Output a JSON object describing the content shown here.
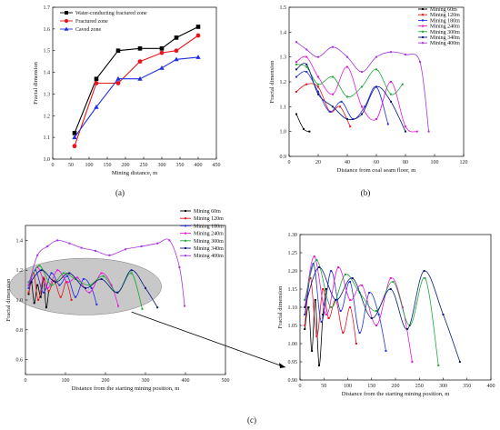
{
  "panel_labels": [
    "(a)",
    "(b)",
    "(c)"
  ],
  "chart_data": [
    {
      "id": "a",
      "type": "line",
      "xlabel": "Mining distance, m",
      "ylabel": "Fractal dimension",
      "xlim": [
        0,
        450
      ],
      "ylim": [
        1.0,
        1.7
      ],
      "xticks": [
        0,
        50,
        100,
        150,
        200,
        250,
        300,
        350,
        400,
        450
      ],
      "yticks": [
        1.0,
        1.1,
        1.2,
        1.3,
        1.4,
        1.5,
        1.6,
        1.7
      ],
      "legend": "top-left",
      "series": [
        {
          "name": "Water-conducting fractured zone",
          "color": "#000000",
          "marker": "square",
          "x": [
            60,
            120,
            180,
            240,
            300,
            340,
            400
          ],
          "y": [
            1.12,
            1.37,
            1.5,
            1.51,
            1.51,
            1.56,
            1.61
          ]
        },
        {
          "name": "Fractured zone",
          "color": "#e8141b",
          "marker": "circle",
          "x": [
            60,
            120,
            180,
            240,
            300,
            340,
            400
          ],
          "y": [
            1.06,
            1.35,
            1.35,
            1.45,
            1.49,
            1.5,
            1.57
          ]
        },
        {
          "name": "Caved zone",
          "color": "#1f2fe0",
          "marker": "triangle",
          "x": [
            60,
            120,
            180,
            240,
            300,
            340,
            400
          ],
          "y": [
            1.1,
            1.24,
            1.37,
            1.37,
            1.42,
            1.46,
            1.47
          ]
        }
      ]
    },
    {
      "id": "b",
      "type": "scatter",
      "xlabel": "Distance from coal seam floor, m",
      "ylabel": "Fractal dimension",
      "xlim": [
        0,
        120
      ],
      "ylim": [
        0.9,
        1.5
      ],
      "xticks": [
        0,
        20,
        40,
        60,
        80,
        100,
        120
      ],
      "yticks": [
        0.9,
        1.0,
        1.1,
        1.2,
        1.3,
        1.4,
        1.5
      ],
      "legend": "top-right",
      "series": [
        {
          "name": "Mining 60m",
          "color": "#000000",
          "x": [
            5,
            10,
            14
          ],
          "y": [
            1.07,
            1.01,
            1.0
          ]
        },
        {
          "name": "Mining 120m",
          "color": "#e8141b",
          "x": [
            5,
            12,
            20,
            28,
            35,
            42
          ],
          "y": [
            1.16,
            1.19,
            1.18,
            1.08,
            1.1,
            1.02
          ]
        },
        {
          "name": "Mining 180m",
          "color": "#1f2fe0",
          "x": [
            5,
            12,
            20,
            28,
            36,
            44,
            52,
            60,
            68
          ],
          "y": [
            1.22,
            1.24,
            1.16,
            1.08,
            1.12,
            1.05,
            1.1,
            1.18,
            1.03
          ]
        },
        {
          "name": "Mining 240m",
          "color": "#e619d6",
          "x": [
            5,
            12,
            20,
            30,
            40,
            50,
            60,
            70,
            80,
            88
          ],
          "y": [
            1.28,
            1.3,
            1.22,
            1.15,
            1.26,
            1.1,
            1.05,
            1.2,
            1.02,
            1.0
          ]
        },
        {
          "name": "Mining 300m",
          "color": "#1ea83a",
          "x": [
            5,
            12,
            20,
            30,
            40,
            50,
            60,
            70,
            78
          ],
          "y": [
            1.27,
            1.26,
            1.19,
            1.22,
            1.14,
            1.18,
            1.25,
            1.15,
            1.19
          ]
        },
        {
          "name": "Mining 340m",
          "color": "#0a1a7a",
          "x": [
            5,
            12,
            20,
            30,
            40,
            50,
            60,
            70,
            80
          ],
          "y": [
            1.25,
            1.27,
            1.15,
            1.1,
            1.05,
            1.07,
            1.18,
            1.12,
            1.0
          ]
        },
        {
          "name": "Mining 400m",
          "color": "#a534e0",
          "x": [
            5,
            12,
            20,
            30,
            40,
            50,
            60,
            70,
            80,
            90,
            96
          ],
          "y": [
            1.36,
            1.33,
            1.3,
            1.34,
            1.3,
            1.24,
            1.3,
            1.32,
            1.31,
            1.28,
            1.0
          ]
        }
      ]
    },
    {
      "id": "c1",
      "type": "line",
      "xlabel": "Distance from the starting mining position, m",
      "ylabel": "Fractal dimension",
      "xlim": [
        0,
        500
      ],
      "ylim": [
        0.5,
        1.5
      ],
      "xticks": [
        0,
        100,
        200,
        300,
        400,
        500
      ],
      "yticks": [
        0.6,
        0.8,
        1.0,
        1.2,
        1.4
      ],
      "legend": "top-right",
      "series": [
        {
          "name": "Mining 60m",
          "color": "#000000",
          "x": [
            8,
            15,
            22,
            30,
            38,
            45,
            52,
            58
          ],
          "y": [
            1.04,
            1.12,
            0.98,
            1.1,
            1.02,
            1.14,
            0.95,
            1.06
          ]
        },
        {
          "name": "Mining 120m",
          "color": "#e8141b",
          "x": [
            8,
            20,
            32,
            45,
            58,
            72,
            88,
            102,
            115
          ],
          "y": [
            1.05,
            1.18,
            1.0,
            1.15,
            1.06,
            1.13,
            1.02,
            1.12,
            1.0
          ]
        },
        {
          "name": "Mining 180m",
          "color": "#1f2fe0",
          "x": [
            8,
            25,
            45,
            65,
            85,
            105,
            125,
            145,
            165,
            178
          ],
          "y": [
            1.08,
            1.2,
            1.05,
            1.18,
            1.1,
            1.16,
            1.02,
            1.14,
            1.08,
            0.97
          ]
        },
        {
          "name": "Mining 240m",
          "color": "#e619d6",
          "x": [
            8,
            30,
            55,
            80,
            105,
            130,
            160,
            190,
            215,
            232
          ],
          "y": [
            1.1,
            1.22,
            1.08,
            1.2,
            1.12,
            1.15,
            1.05,
            1.18,
            1.1,
            0.96
          ]
        },
        {
          "name": "Mining 300m",
          "color": "#1ea83a",
          "x": [
            8,
            35,
            65,
            95,
            125,
            160,
            195,
            230,
            265,
            292
          ],
          "y": [
            1.12,
            1.23,
            1.1,
            1.18,
            1.14,
            1.1,
            1.16,
            1.05,
            1.18,
            0.94
          ]
        },
        {
          "name": "Mining 340m",
          "color": "#0a1a7a",
          "x": [
            8,
            40,
            75,
            110,
            150,
            190,
            230,
            265,
            300,
            330
          ],
          "y": [
            1.1,
            1.2,
            1.12,
            1.18,
            1.08,
            1.14,
            1.05,
            1.2,
            1.08,
            0.95
          ]
        },
        {
          "name": "Mining 400m",
          "color": "#a534e0",
          "x": [
            8,
            30,
            55,
            80,
            110,
            140,
            175,
            210,
            250,
            290,
            330,
            360,
            385,
            398
          ],
          "y": [
            1.1,
            1.3,
            1.36,
            1.4,
            1.38,
            1.35,
            1.33,
            1.3,
            1.34,
            1.36,
            1.38,
            1.4,
            1.22,
            0.96
          ]
        }
      ]
    },
    {
      "id": "c2",
      "type": "line",
      "xlabel": "Distance from the starting mining position, m",
      "ylabel": "Fractal dimension",
      "xlim": [
        0,
        400
      ],
      "ylim": [
        0.9,
        1.3
      ],
      "xticks": [
        0,
        50,
        100,
        150,
        200,
        250,
        300,
        350,
        400
      ],
      "yticks": [
        0.9,
        0.95,
        1.0,
        1.05,
        1.1,
        1.15,
        1.2,
        1.25,
        1.3
      ],
      "series": [
        {
          "name": "Mining 60m",
          "color": "#000000",
          "x": [
            10,
            18,
            25,
            32,
            40,
            48,
            55
          ],
          "y": [
            1.04,
            1.1,
            0.98,
            1.12,
            0.94,
            1.08,
            1.15
          ]
        },
        {
          "name": "Mining 120m",
          "color": "#e8141b",
          "x": [
            10,
            22,
            35,
            48,
            60,
            75,
            90,
            105,
            118
          ],
          "y": [
            1.05,
            1.18,
            1.02,
            1.15,
            1.07,
            1.12,
            1.03,
            1.1,
            1.0
          ]
        },
        {
          "name": "Mining 180m",
          "color": "#1f2fe0",
          "x": [
            10,
            28,
            45,
            65,
            85,
            105,
            125,
            145,
            165,
            180
          ],
          "y": [
            1.08,
            1.22,
            1.06,
            1.2,
            1.09,
            1.17,
            1.03,
            1.14,
            1.08,
            0.98
          ]
        },
        {
          "name": "Mining 240m",
          "color": "#e619d6",
          "x": [
            10,
            30,
            55,
            80,
            105,
            130,
            160,
            190,
            215,
            235
          ],
          "y": [
            1.1,
            1.24,
            1.08,
            1.21,
            1.12,
            1.16,
            1.05,
            1.18,
            1.1,
            0.95
          ]
        },
        {
          "name": "Mining 300m",
          "color": "#1ea83a",
          "x": [
            10,
            35,
            65,
            95,
            125,
            160,
            195,
            230,
            262,
            290
          ],
          "y": [
            1.12,
            1.23,
            1.1,
            1.19,
            1.14,
            1.09,
            1.17,
            1.05,
            1.18,
            0.94
          ]
        },
        {
          "name": "Mining 340m",
          "color": "#0a1a7a",
          "x": [
            10,
            40,
            75,
            110,
            150,
            190,
            225,
            260,
            300,
            335
          ],
          "y": [
            1.1,
            1.21,
            1.12,
            1.18,
            1.07,
            1.15,
            1.04,
            1.2,
            1.08,
            0.95
          ]
        }
      ]
    }
  ]
}
